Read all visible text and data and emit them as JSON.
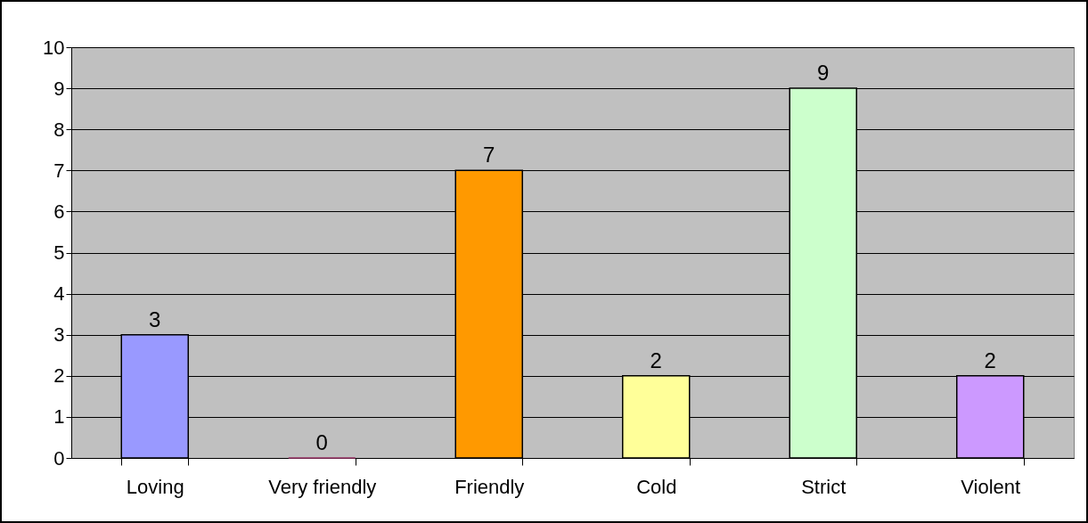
{
  "chart_data": {
    "type": "bar",
    "categories": [
      "Loving",
      "Very friendly",
      "Friendly",
      "Cold",
      "Strict",
      "Violent"
    ],
    "values": [
      3,
      0,
      7,
      2,
      9,
      2
    ],
    "colors": [
      "#9999ff",
      "#993366",
      "#ff9900",
      "#ffff99",
      "#ccffcc",
      "#cc99ff"
    ],
    "ylim": [
      0,
      10
    ],
    "yticks": [
      0,
      1,
      2,
      3,
      4,
      5,
      6,
      7,
      8,
      9,
      10
    ],
    "grid": "y",
    "data_labels": true
  }
}
